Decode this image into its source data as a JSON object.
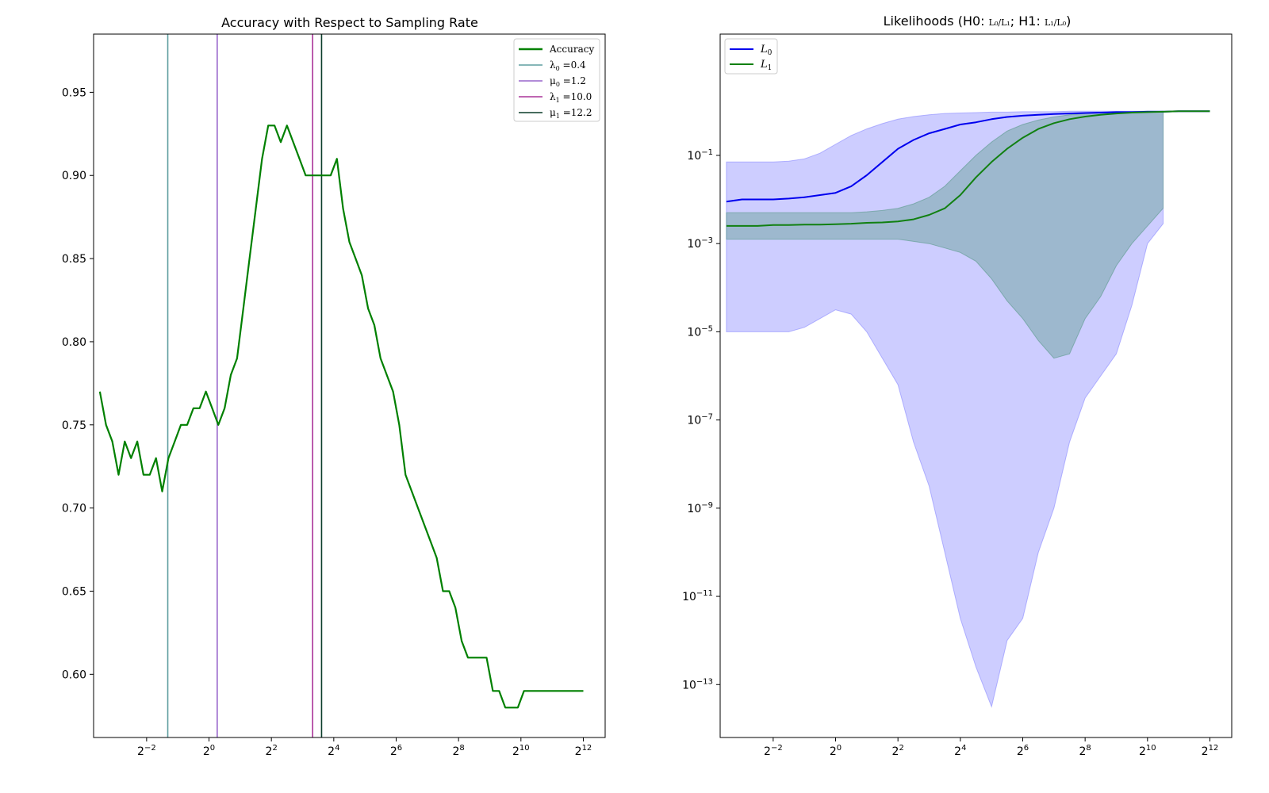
{
  "colors": {
    "accuracy": "#008000",
    "lambda0": "#5f9ea0",
    "mu0": "#9966cc",
    "lambda1": "#aa3399",
    "mu1": "#0b3d2a",
    "L0": "#0000ee",
    "L1": "#118011",
    "L0_band": "#8888ff",
    "L1_band": "#5a9a8a"
  },
  "chart_data": [
    {
      "type": "line",
      "title": "Accuracy with Respect to Sampling Rate",
      "xlabel": "",
      "ylabel": "",
      "x_scale": "log2",
      "xlim_log2": [
        -3.7,
        12.7
      ],
      "ylim": [
        0.562,
        0.985
      ],
      "x_ticks": [
        {
          "exp": -2,
          "base": "2",
          "sup": "−2"
        },
        {
          "exp": 0,
          "base": "2",
          "sup": "0"
        },
        {
          "exp": 2,
          "base": "2",
          "sup": "2"
        },
        {
          "exp": 4,
          "base": "2",
          "sup": "4"
        },
        {
          "exp": 6,
          "base": "2",
          "sup": "6"
        },
        {
          "exp": 8,
          "base": "2",
          "sup": "8"
        },
        {
          "exp": 10,
          "base": "2",
          "sup": "10"
        },
        {
          "exp": 12,
          "base": "2",
          "sup": "12"
        }
      ],
      "y_ticks": [
        {
          "value": 0.6,
          "label": "0.60"
        },
        {
          "value": 0.65,
          "label": "0.65"
        },
        {
          "value": 0.7,
          "label": "0.70"
        },
        {
          "value": 0.75,
          "label": "0.75"
        },
        {
          "value": 0.8,
          "label": "0.80"
        },
        {
          "value": 0.85,
          "label": "0.85"
        },
        {
          "value": 0.9,
          "label": "0.90"
        },
        {
          "value": 0.95,
          "label": "0.95"
        }
      ],
      "legend": {
        "placement": "top-right",
        "entries": [
          {
            "label": "Accuracy",
            "color_key": "accuracy"
          },
          {
            "label": "λ0 =0.4",
            "sym": "λ",
            "sub": "0",
            "rest": " =0.4",
            "color_key": "lambda0"
          },
          {
            "label": "μ0 =1.2",
            "sym": "μ",
            "sub": "0",
            "rest": " =1.2",
            "color_key": "mu0"
          },
          {
            "label": "λ1 =10.0",
            "sym": "λ",
            "sub": "1",
            "rest": " =10.0",
            "color_key": "lambda1"
          },
          {
            "label": "μ1 =12.2",
            "sym": "μ",
            "sub": "1",
            "rest": " =12.2",
            "color_key": "mu1"
          }
        ]
      },
      "vlines": [
        {
          "name": "λ0",
          "x": 0.4,
          "color_key": "lambda0"
        },
        {
          "name": "μ0",
          "x": 1.2,
          "color_key": "mu0"
        },
        {
          "name": "λ1",
          "x": 10.0,
          "color_key": "lambda1"
        },
        {
          "name": "μ1",
          "x": 12.2,
          "color_key": "mu1"
        }
      ],
      "series": [
        {
          "name": "Accuracy",
          "color_key": "accuracy",
          "x_log2": [
            -3.5,
            -3.3,
            -3.1,
            -2.9,
            -2.7,
            -2.5,
            -2.3,
            -2.1,
            -1.9,
            -1.7,
            -1.5,
            -1.3,
            -1.1,
            -0.9,
            -0.7,
            -0.5,
            -0.3,
            -0.1,
            0.1,
            0.3,
            0.5,
            0.7,
            0.9,
            1.1,
            1.3,
            1.5,
            1.7,
            1.9,
            2.1,
            2.3,
            2.5,
            2.7,
            2.9,
            3.1,
            3.3,
            3.5,
            3.7,
            3.9,
            4.1,
            4.3,
            4.5,
            4.7,
            4.9,
            5.1,
            5.3,
            5.5,
            5.7,
            5.9,
            6.1,
            6.3,
            6.5,
            6.7,
            6.9,
            7.1,
            7.3,
            7.5,
            7.7,
            7.9,
            8.1,
            8.3,
            8.5,
            8.7,
            8.9,
            9.1,
            9.3,
            9.5,
            9.7,
            9.9,
            10.1,
            10.3,
            10.5,
            10.7,
            10.9,
            11.1,
            11.3,
            11.5,
            11.7,
            11.9,
            12.0
          ],
          "y": [
            0.77,
            0.75,
            0.74,
            0.72,
            0.74,
            0.73,
            0.74,
            0.72,
            0.72,
            0.73,
            0.71,
            0.73,
            0.74,
            0.75,
            0.75,
            0.76,
            0.76,
            0.77,
            0.76,
            0.75,
            0.76,
            0.78,
            0.79,
            0.82,
            0.85,
            0.88,
            0.91,
            0.93,
            0.93,
            0.92,
            0.93,
            0.92,
            0.91,
            0.9,
            0.9,
            0.9,
            0.9,
            0.9,
            0.91,
            0.88,
            0.86,
            0.85,
            0.84,
            0.82,
            0.81,
            0.79,
            0.78,
            0.77,
            0.75,
            0.72,
            0.71,
            0.7,
            0.69,
            0.68,
            0.67,
            0.65,
            0.65,
            0.64,
            0.62,
            0.61,
            0.61,
            0.61,
            0.61,
            0.59,
            0.59,
            0.58,
            0.58,
            0.58,
            0.59,
            0.59,
            0.59,
            0.59,
            0.59,
            0.59,
            0.59,
            0.59,
            0.59,
            0.59,
            0.59
          ]
        }
      ]
    },
    {
      "type": "line",
      "title": "Likelihoods (H0: L0/L1; H1: L1/L0)",
      "title_parts": {
        "pre": "Likelihoods (H0: ",
        "mid": "; H1: ",
        "post": ")"
      },
      "xlabel": "",
      "ylabel": "",
      "x_scale": "log2",
      "y_scale": "log10",
      "xlim_log2": [
        -3.7,
        12.7
      ],
      "ylim_log10": [
        -14.2,
        1.75
      ],
      "x_ticks": [
        {
          "exp": -2,
          "base": "2",
          "sup": "−2"
        },
        {
          "exp": 0,
          "base": "2",
          "sup": "0"
        },
        {
          "exp": 2,
          "base": "2",
          "sup": "2"
        },
        {
          "exp": 4,
          "base": "2",
          "sup": "4"
        },
        {
          "exp": 6,
          "base": "2",
          "sup": "6"
        },
        {
          "exp": 8,
          "base": "2",
          "sup": "8"
        },
        {
          "exp": 10,
          "base": "2",
          "sup": "10"
        },
        {
          "exp": 12,
          "base": "2",
          "sup": "12"
        }
      ],
      "y_ticks": [
        {
          "exp": -1,
          "base": "10",
          "sup": "−1"
        },
        {
          "exp": -3,
          "base": "10",
          "sup": "−3"
        },
        {
          "exp": -5,
          "base": "10",
          "sup": "−5"
        },
        {
          "exp": -7,
          "base": "10",
          "sup": "−7"
        },
        {
          "exp": -9,
          "base": "10",
          "sup": "−9"
        },
        {
          "exp": -11,
          "base": "10",
          "sup": "−11"
        },
        {
          "exp": -13,
          "base": "10",
          "sup": "−13"
        }
      ],
      "legend": {
        "placement": "top-left",
        "entries": [
          {
            "label": "L0",
            "sym": "L",
            "sub": "0",
            "rest": "",
            "color_key": "L0"
          },
          {
            "label": "L1",
            "sym": "L",
            "sub": "1",
            "rest": "",
            "color_key": "L1"
          }
        ]
      },
      "series": [
        {
          "name": "L0",
          "color_key": "L0",
          "x_log2": [
            -3.5,
            -3.0,
            -2.5,
            -2.0,
            -1.5,
            -1.0,
            -0.5,
            0.0,
            0.5,
            1.0,
            1.5,
            2.0,
            2.5,
            3.0,
            3.5,
            4.0,
            4.5,
            5.0,
            5.5,
            6.0,
            6.5,
            7.0,
            7.5,
            8.0,
            8.5,
            9.0,
            9.5,
            10.0,
            10.5,
            11.0,
            11.5,
            12.0
          ],
          "log10_y": [
            -2.05,
            -2.0,
            -2.0,
            -2.0,
            -1.98,
            -1.95,
            -1.9,
            -1.85,
            -1.7,
            -1.45,
            -1.15,
            -0.85,
            -0.65,
            -0.5,
            -0.4,
            -0.3,
            -0.25,
            -0.18,
            -0.13,
            -0.1,
            -0.08,
            -0.06,
            -0.05,
            -0.04,
            -0.03,
            -0.02,
            -0.02,
            -0.01,
            -0.01,
            0.0,
            0.0,
            0.0
          ]
        },
        {
          "name": "L1",
          "color_key": "L1",
          "x_log2": [
            -3.5,
            -3.0,
            -2.5,
            -2.0,
            -1.5,
            -1.0,
            -0.5,
            0.0,
            0.5,
            1.0,
            1.5,
            2.0,
            2.5,
            3.0,
            3.5,
            4.0,
            4.5,
            5.0,
            5.5,
            6.0,
            6.5,
            7.0,
            7.5,
            8.0,
            8.5,
            9.0,
            9.5,
            10.0,
            10.5,
            11.0,
            11.5,
            12.0
          ],
          "log10_y": [
            -2.6,
            -2.6,
            -2.6,
            -2.58,
            -2.58,
            -2.57,
            -2.57,
            -2.56,
            -2.55,
            -2.53,
            -2.52,
            -2.5,
            -2.45,
            -2.35,
            -2.2,
            -1.9,
            -1.5,
            -1.15,
            -0.85,
            -0.6,
            -0.4,
            -0.27,
            -0.18,
            -0.12,
            -0.08,
            -0.05,
            -0.03,
            -0.02,
            -0.01,
            0.0,
            0.0,
            0.0
          ]
        }
      ],
      "bands": [
        {
          "name": "L0 range",
          "color_key": "L0_band",
          "x_log2": [
            -3.5,
            -3.0,
            -2.5,
            -2.0,
            -1.5,
            -1.0,
            -0.5,
            0.0,
            0.5,
            1.0,
            1.5,
            2.0,
            2.5,
            3.0,
            3.5,
            4.0,
            4.5,
            5.0,
            5.5,
            6.0,
            6.5,
            7.0,
            7.5,
            8.0,
            8.5,
            9.0,
            9.5,
            10.0,
            10.5
          ],
          "log10_upper": [
            -1.15,
            -1.15,
            -1.15,
            -1.15,
            -1.13,
            -1.08,
            -0.95,
            -0.75,
            -0.55,
            -0.4,
            -0.28,
            -0.18,
            -0.12,
            -0.08,
            -0.05,
            -0.04,
            -0.03,
            -0.02,
            -0.02,
            -0.01,
            -0.01,
            -0.01,
            0.0,
            0.0,
            0.0,
            0.0,
            0.0,
            0.0,
            0.0
          ],
          "log10_lower": [
            -5.0,
            -5.0,
            -5.0,
            -5.0,
            -5.0,
            -4.9,
            -4.7,
            -4.5,
            -4.6,
            -5.0,
            -5.6,
            -6.2,
            -7.5,
            -8.5,
            -10.0,
            -11.5,
            -12.6,
            -13.5,
            -12.0,
            -11.5,
            -10.0,
            -9.0,
            -7.5,
            -6.5,
            -6.0,
            -5.5,
            -4.4,
            -3.0,
            -2.55
          ]
        },
        {
          "name": "L1 range",
          "color_key": "L1_band",
          "x_log2": [
            -3.5,
            -3.0,
            -2.5,
            -2.0,
            -1.5,
            -1.0,
            -0.5,
            0.0,
            0.5,
            1.0,
            1.5,
            2.0,
            2.5,
            3.0,
            3.5,
            4.0,
            4.5,
            5.0,
            5.5,
            6.0,
            6.5,
            7.0,
            7.5,
            8.0,
            8.5,
            9.0,
            9.5,
            10.0,
            10.5
          ],
          "log10_upper": [
            -2.3,
            -2.3,
            -2.3,
            -2.3,
            -2.3,
            -2.3,
            -2.3,
            -2.3,
            -2.3,
            -2.28,
            -2.25,
            -2.2,
            -2.1,
            -1.95,
            -1.7,
            -1.35,
            -1.0,
            -0.7,
            -0.45,
            -0.3,
            -0.2,
            -0.13,
            -0.08,
            -0.05,
            -0.03,
            -0.02,
            -0.01,
            0.0,
            0.0
          ],
          "log10_lower": [
            -2.9,
            -2.9,
            -2.9,
            -2.9,
            -2.9,
            -2.9,
            -2.9,
            -2.9,
            -2.9,
            -2.9,
            -2.9,
            -2.9,
            -2.95,
            -3.0,
            -3.1,
            -3.2,
            -3.4,
            -3.8,
            -4.3,
            -4.7,
            -5.2,
            -5.6,
            -5.5,
            -4.7,
            -4.2,
            -3.5,
            -3.0,
            -2.6,
            -2.2
          ]
        }
      ]
    }
  ]
}
